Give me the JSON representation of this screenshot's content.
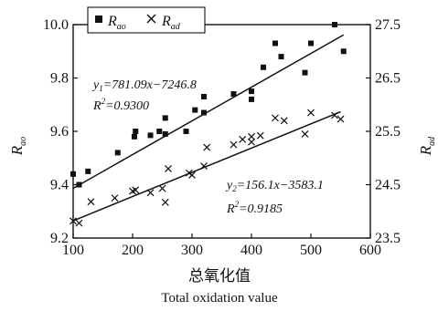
{
  "chart_data": {
    "type": "scatter",
    "xlabel": "总氧化值",
    "xlabel_en": "Total oxidation value",
    "xlim": [
      100,
      600
    ],
    "x_ticks": [
      "100",
      "200",
      "300",
      "400",
      "500",
      "600"
    ],
    "ylabel_left_main": "R",
    "ylabel_left_sub": "ao",
    "ylabel_right_main": "R",
    "ylabel_right_sub": "ad",
    "ylim_left": [
      9.2,
      10.0
    ],
    "y_ticks_left": [
      "9.2",
      "9.4",
      "9.6",
      "9.8",
      "10.0"
    ],
    "ylim_right": [
      23.5,
      27.5
    ],
    "y_ticks_right": [
      "23.5",
      "24.5",
      "25.5",
      "26.5",
      "27.5"
    ],
    "legend": {
      "placement": "top-left"
    },
    "series": [
      {
        "name": "R_ao",
        "name_main": "R",
        "name_sub": "ao",
        "axis": "left",
        "marker": "square",
        "x": [
          100,
          110,
          125,
          175,
          203,
          205,
          230,
          245,
          255,
          255,
          290,
          305,
          320,
          320,
          370,
          400,
          400,
          420,
          440,
          450,
          490,
          500,
          540,
          555
        ],
        "y": [
          9.44,
          9.4,
          9.45,
          9.52,
          9.58,
          9.6,
          9.585,
          9.6,
          9.59,
          9.65,
          9.6,
          9.68,
          9.67,
          9.73,
          9.74,
          9.72,
          9.75,
          9.84,
          9.93,
          9.88,
          9.82,
          9.93,
          10.0,
          9.9
        ],
        "fit": {
          "equation_lhs": "y",
          "equation_sub": "1",
          "equation_rhs": "=781.09x−7246.8",
          "r2_label": "R",
          "r2_sup": "2",
          "r2_value": "=0.9300",
          "slope": 0.001264,
          "intercept": 9.26
        }
      },
      {
        "name": "R_ad",
        "name_main": "R",
        "name_sub": "ad",
        "axis": "right",
        "marker": "x",
        "x": [
          100,
          110,
          130,
          170,
          200,
          205,
          230,
          250,
          255,
          260,
          295,
          300,
          320,
          325,
          370,
          385,
          400,
          400,
          415,
          440,
          455,
          490,
          500,
          540,
          550
        ],
        "y": [
          23.82,
          23.78,
          24.18,
          24.25,
          24.38,
          24.4,
          24.35,
          24.43,
          24.17,
          24.8,
          24.72,
          24.68,
          24.85,
          25.2,
          25.25,
          25.35,
          25.3,
          25.4,
          25.42,
          25.75,
          25.7,
          25.45,
          25.85,
          25.8,
          25.73
        ],
        "fit": {
          "equation_lhs": "y",
          "equation_sub": "2",
          "equation_rhs": "=156.1x−3583.1",
          "r2_label": "R",
          "r2_sup": "2",
          "r2_value": "=0.9185",
          "slope": 0.00454,
          "intercept": 23.37
        }
      }
    ]
  }
}
